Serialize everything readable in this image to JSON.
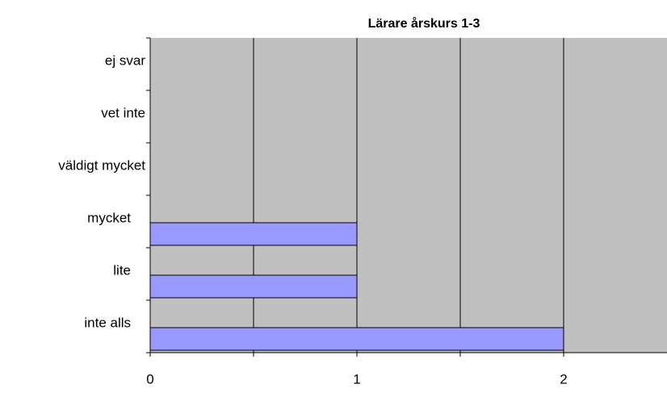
{
  "chart_data": {
    "type": "hbar",
    "title": "Lärare årskurs 1-3",
    "categories": [
      "ej svar",
      "vet inte",
      "väldigt mycket",
      "mycket",
      "lite",
      "inte alls"
    ],
    "values": [
      0,
      0,
      0,
      1,
      1,
      2
    ],
    "color": "#9999ff",
    "background": "#c0c0c0",
    "xlim": [
      0,
      2.5
    ],
    "xticks": [
      0,
      1,
      2
    ],
    "minor_xticks": [
      0.5,
      1.5
    ],
    "grid": true
  }
}
